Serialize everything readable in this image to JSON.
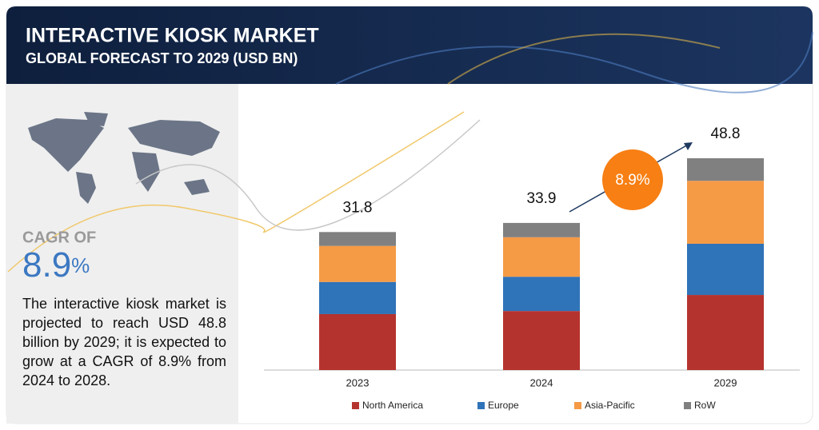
{
  "header": {
    "title": "INTERACTIVE KIOSK MARKET",
    "subtitle": "GLOBAL FORECAST TO 2029 (USD BN)"
  },
  "sidebar": {
    "cagr_heading": "CAGR OF",
    "cagr_number": "8.9",
    "cagr_unit": "%",
    "description": "The interactive kiosk market is projected to reach USD 48.8 billion by 2029; it is expected to grow at a CAGR of 8.9% from 2024 to 2028."
  },
  "chart_data": {
    "type": "bar",
    "stacked": true,
    "categories": [
      "2023",
      "2024",
      "2029"
    ],
    "series": [
      {
        "name": "North America",
        "color": "#b5332e",
        "values": [
          12.9,
          13.6,
          17.3
        ]
      },
      {
        "name": "Europe",
        "color": "#2f73b8",
        "values": [
          7.4,
          7.9,
          11.8
        ]
      },
      {
        "name": "Asia-Pacific",
        "color": "#f59a45",
        "values": [
          8.3,
          9.1,
          14.5
        ]
      },
      {
        "name": "RoW",
        "color": "#808080",
        "values": [
          3.2,
          3.3,
          5.2
        ]
      }
    ],
    "totals": [
      31.8,
      33.9,
      48.8
    ],
    "cagr_label": "8.9%"
  }
}
